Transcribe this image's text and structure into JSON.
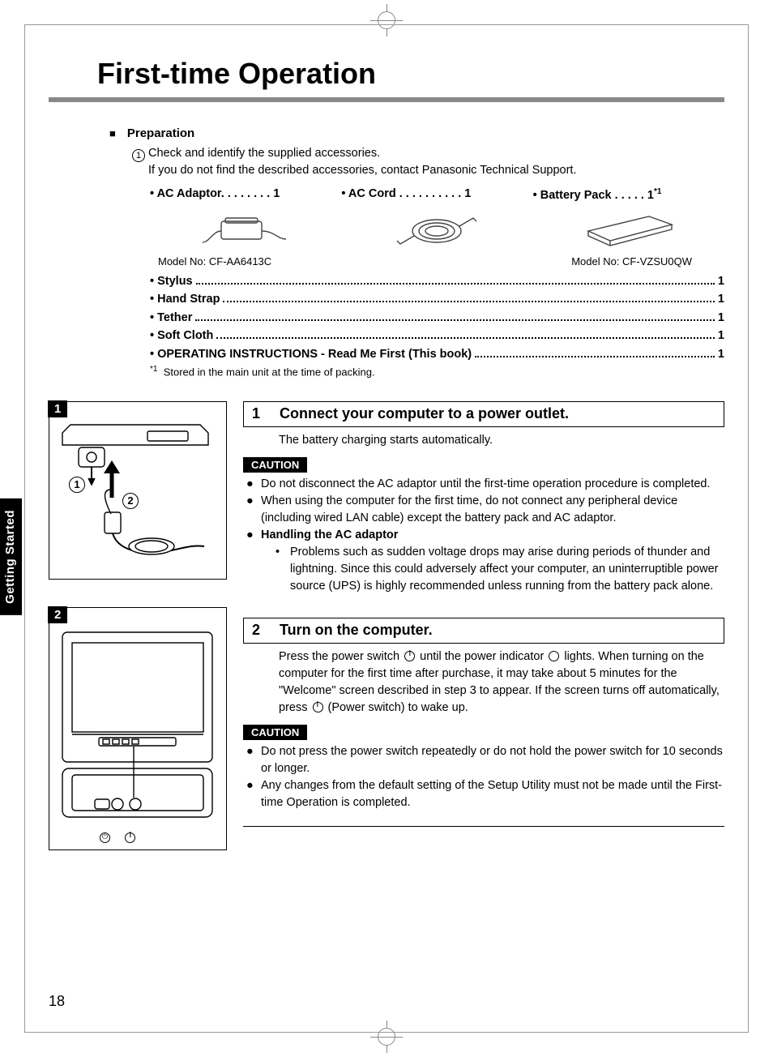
{
  "page": {
    "title": "First-time Operation",
    "number": "18",
    "tab": "Getting Started"
  },
  "prep": {
    "heading": "Preparation",
    "line1": "Check and identify the supplied accessories.",
    "line2": "If you do not find the described accessories, contact Panasonic Technical Support."
  },
  "accessories": {
    "col1": "• AC Adaptor. . . . . . . .  1",
    "col2": "• AC Cord . . . . . . . . . .  1",
    "col3_label": "• Battery Pack  . . . . .  1",
    "col3_sup": "*1",
    "model1": "Model No: CF-AA6413C",
    "model2": "Model No: CF-VZSU0QW"
  },
  "dots": {
    "items": [
      {
        "label": "• Stylus",
        "qty": "1"
      },
      {
        "label": "• Hand Strap",
        "qty": "1"
      },
      {
        "label": "• Tether",
        "qty": "1"
      },
      {
        "label": "• Soft Cloth",
        "qty": "1"
      },
      {
        "label": "• OPERATING INSTRUCTIONS - Read Me First (This book)",
        "qty": "1"
      }
    ],
    "footnote_mark": "*1",
    "footnote": "Stored in the main unit at the time of packing."
  },
  "step1": {
    "num": "1",
    "title": "Connect your computer to a power outlet.",
    "body": "The battery charging starts automatically.",
    "caution": "CAUTION",
    "b1": "Do not disconnect the AC adaptor until the first-time operation procedure is completed.",
    "b2": "When using the computer for the first time, do not connect any peripheral device (including wired LAN cable) except the battery pack and AC adaptor.",
    "b3_head": "Handling the AC adaptor",
    "b3_sub": "Problems such as sudden voltage drops may arise during periods of thunder and lightning. Since this could adversely affect your computer, an uninterruptible power source (UPS) is highly recommended unless running from the battery pack alone."
  },
  "step2": {
    "num": "2",
    "title": "Turn on the computer.",
    "body_a": "Press the power switch ",
    "body_b": " until the power indicator ",
    "body_c": " lights. When turning on the computer for the first time after purchase, it may take about 5 minutes for the \"Welcome\" screen described in step 3 to appear. If the screen turns off automatically, press ",
    "body_d": " (Power switch) to wake up.",
    "caution": "CAUTION",
    "b1": "Do not press the power switch repeatedly or do not hold the power switch for 10 seconds or longer.",
    "b2": "Any changes from the default setting of the Setup Utility must not be made until the First-time Operation is completed."
  },
  "fig": {
    "tag1": "1",
    "tag2": "2",
    "c1": "1",
    "c2": "2"
  }
}
